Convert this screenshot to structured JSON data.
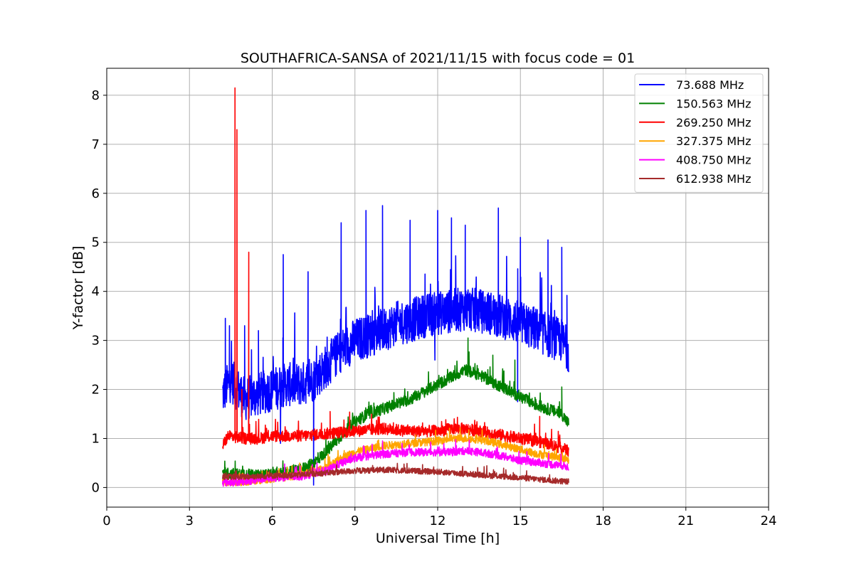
{
  "chart_data": {
    "type": "line",
    "title": "SOUTHAFRICA-SANSA of 2021/11/15 with focus code = 01",
    "xlabel": "Universal Time [h]",
    "ylabel": "Y-factor [dB]",
    "xlim": [
      0,
      24
    ],
    "ylim": [
      -0.4,
      8.55
    ],
    "xticks": [
      "0",
      "3",
      "6",
      "9",
      "12",
      "15",
      "18",
      "21",
      "24"
    ],
    "yticks": [
      "0",
      "1",
      "2",
      "3",
      "4",
      "5",
      "6",
      "7",
      "8"
    ],
    "grid": true,
    "legend_position": "top-right",
    "series": [
      {
        "name": "73.688 MHz",
        "color": "#0000ff",
        "x": [
          4.2,
          4.5,
          5.0,
          5.5,
          6.0,
          6.5,
          7.0,
          7.5,
          8.0,
          8.5,
          9.0,
          9.5,
          10.0,
          10.5,
          11.0,
          11.5,
          12.0,
          12.5,
          13.0,
          13.5,
          14.0,
          14.5,
          15.0,
          15.5,
          16.0,
          16.5,
          16.75
        ],
        "y": [
          1.9,
          2.2,
          1.8,
          1.9,
          2.0,
          2.1,
          2.1,
          2.2,
          2.5,
          2.8,
          3.0,
          3.1,
          3.2,
          3.35,
          3.4,
          3.5,
          3.55,
          3.6,
          3.65,
          3.6,
          3.55,
          3.45,
          3.35,
          3.25,
          3.1,
          3.0,
          2.8
        ],
        "spread": 0.45,
        "peaks": [
          [
            4.3,
            3.45
          ],
          [
            4.45,
            3.3
          ],
          [
            5.0,
            3.3
          ],
          [
            5.5,
            3.2
          ],
          [
            6.4,
            4.75
          ],
          [
            7.3,
            4.4
          ],
          [
            8.5,
            5.4
          ],
          [
            9.4,
            5.65
          ],
          [
            10.0,
            5.75
          ],
          [
            11.0,
            5.45
          ],
          [
            12.0,
            5.65
          ],
          [
            12.5,
            5.5
          ],
          [
            13.0,
            5.35
          ],
          [
            14.2,
            5.7
          ],
          [
            15.0,
            5.1
          ],
          [
            16.0,
            5.05
          ],
          [
            16.5,
            4.9
          ]
        ],
        "dips": [
          [
            6.3,
            0.9
          ],
          [
            7.5,
            0.05
          ],
          [
            11.9,
            2.6
          ],
          [
            14.9,
            1.75
          ],
          [
            16.7,
            2.45
          ]
        ]
      },
      {
        "name": "150.563 MHz",
        "color": "#008000",
        "x": [
          4.2,
          5.0,
          6.0,
          7.0,
          7.5,
          8.0,
          8.5,
          9.0,
          9.5,
          10.0,
          10.5,
          11.0,
          11.5,
          12.0,
          12.5,
          13.0,
          13.5,
          14.0,
          14.5,
          15.0,
          15.5,
          16.0,
          16.5,
          16.75
        ],
        "y": [
          0.3,
          0.25,
          0.25,
          0.35,
          0.5,
          0.75,
          1.05,
          1.35,
          1.5,
          1.6,
          1.7,
          1.8,
          1.95,
          2.1,
          2.25,
          2.4,
          2.3,
          2.15,
          2.0,
          1.85,
          1.7,
          1.6,
          1.5,
          1.3
        ],
        "spread": 0.12,
        "peaks": [
          [
            13.1,
            3.05
          ],
          [
            14.0,
            2.7
          ],
          [
            14.8,
            2.6
          ],
          [
            16.5,
            2.05
          ]
        ],
        "dips": []
      },
      {
        "name": "269.250 MHz",
        "color": "#ff0000",
        "x": [
          4.2,
          4.4,
          5.0,
          5.5,
          6.0,
          7.0,
          8.0,
          9.0,
          10.0,
          11.0,
          12.0,
          12.5,
          13.0,
          13.5,
          14.0,
          14.5,
          15.0,
          15.5,
          16.0,
          16.5,
          16.75
        ],
        "y": [
          0.85,
          1.05,
          1.0,
          1.0,
          1.05,
          1.05,
          1.1,
          1.15,
          1.2,
          1.15,
          1.15,
          1.2,
          1.2,
          1.15,
          1.1,
          1.05,
          1.0,
          0.95,
          0.9,
          0.8,
          0.75
        ],
        "spread": 0.12,
        "peaks": [
          [
            4.65,
            8.15
          ],
          [
            4.72,
            7.3
          ],
          [
            5.15,
            4.8
          ],
          [
            4.9,
            2.0
          ],
          [
            8.1,
            1.55
          ],
          [
            15.7,
            1.45
          ]
        ],
        "dips": []
      },
      {
        "name": "327.375 MHz",
        "color": "#ffa500",
        "x": [
          4.2,
          5.0,
          6.0,
          7.0,
          8.0,
          8.5,
          9.0,
          10.0,
          11.0,
          12.0,
          12.5,
          13.0,
          13.5,
          14.0,
          14.5,
          15.0,
          15.5,
          16.0,
          16.5,
          16.75
        ],
        "y": [
          0.1,
          0.12,
          0.18,
          0.25,
          0.4,
          0.6,
          0.72,
          0.85,
          0.9,
          0.95,
          1.0,
          1.0,
          0.98,
          0.92,
          0.85,
          0.78,
          0.7,
          0.65,
          0.6,
          0.55
        ],
        "spread": 0.08,
        "peaks": [],
        "dips": []
      },
      {
        "name": "408.750 MHz",
        "color": "#ff00ff",
        "x": [
          4.2,
          5.0,
          6.0,
          7.0,
          8.0,
          8.5,
          9.0,
          10.0,
          11.0,
          12.0,
          12.5,
          13.0,
          13.5,
          14.0,
          14.5,
          15.0,
          15.5,
          16.0,
          16.5,
          16.75
        ],
        "y": [
          0.1,
          0.12,
          0.2,
          0.22,
          0.35,
          0.5,
          0.6,
          0.68,
          0.72,
          0.72,
          0.72,
          0.75,
          0.72,
          0.68,
          0.62,
          0.55,
          0.52,
          0.48,
          0.45,
          0.42
        ],
        "spread": 0.08,
        "peaks": [
          [
            10.0,
            0.95
          ]
        ],
        "dips": []
      },
      {
        "name": "612.938 MHz",
        "color": "#a52a2a",
        "x": [
          4.2,
          5.0,
          6.0,
          7.0,
          8.0,
          9.0,
          10.0,
          11.0,
          12.0,
          13.0,
          14.0,
          15.0,
          16.0,
          16.75
        ],
        "y": [
          0.22,
          0.22,
          0.24,
          0.26,
          0.3,
          0.34,
          0.36,
          0.34,
          0.32,
          0.28,
          0.24,
          0.2,
          0.15,
          0.12
        ],
        "spread": 0.06,
        "peaks": [],
        "dips": []
      }
    ]
  }
}
